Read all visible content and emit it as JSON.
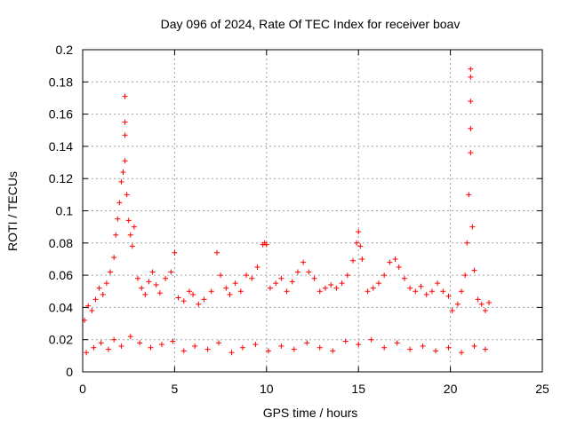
{
  "chart_data": {
    "type": "scatter",
    "title": "Day 096 of 2024, Rate Of TEC Index for receiver boav",
    "xlabel": "GPS time / hours",
    "ylabel": "ROTI / TECUs",
    "xlim": [
      0,
      25
    ],
    "ylim": [
      0,
      0.2
    ],
    "xticks": [
      0,
      5,
      10,
      15,
      20,
      25
    ],
    "xtick_labels": [
      "0",
      "5",
      "10",
      "15",
      "20",
      "25"
    ],
    "yticks": [
      0,
      0.02,
      0.04,
      0.06,
      0.08,
      0.1,
      0.12,
      0.14,
      0.16,
      0.18,
      0.2
    ],
    "ytick_labels": [
      "0",
      "0.02",
      "0.04",
      "0.06",
      "0.08",
      "0.1",
      "0.12",
      "0.14",
      "0.16",
      "0.18",
      "0.2"
    ],
    "grid": true,
    "marker": "plus",
    "color": "#ff0000",
    "series": [
      {
        "x": [
          0.1,
          0.3,
          0.5,
          0.7,
          0.9,
          1.1,
          1.3,
          1.5,
          1.7,
          1.8,
          1.9,
          2.0,
          2.1,
          2.2,
          2.3,
          2.3,
          2.3,
          2.3,
          2.4,
          2.5,
          2.6,
          2.7,
          2.8,
          3.0,
          3.2,
          3.4,
          3.6,
          3.8,
          4.0,
          4.2,
          4.5,
          4.8,
          5.0,
          5.2,
          5.5,
          5.8,
          6.0,
          6.3,
          6.6,
          7.0,
          7.3,
          7.5,
          7.8,
          8.0,
          8.3,
          8.6,
          8.9,
          9.2,
          9.5,
          9.8,
          9.9,
          10.0,
          10.2,
          10.5,
          10.8,
          11.1,
          11.4,
          11.7,
          12.0,
          12.3,
          12.6,
          12.9,
          13.2,
          13.5,
          13.8,
          14.1,
          14.4,
          14.7,
          14.9,
          15.0,
          15.1,
          15.2,
          15.5,
          15.8,
          16.1,
          16.4,
          16.7,
          17.0,
          17.2,
          17.5,
          17.8,
          18.1,
          18.4,
          18.7,
          19.0,
          19.3,
          19.6,
          19.9,
          20.1,
          20.4,
          20.6,
          20.8,
          20.9,
          21.0,
          21.1,
          21.1,
          21.1,
          21.1,
          21.1,
          21.2,
          21.3,
          21.5,
          21.7,
          21.9,
          22.1,
          0.2,
          0.6,
          1.0,
          1.4,
          1.7,
          2.1,
          2.6,
          3.1,
          3.7,
          4.3,
          4.9,
          5.5,
          6.1,
          6.8,
          7.4,
          8.1,
          8.7,
          9.4,
          10.1,
          10.8,
          11.5,
          12.2,
          12.9,
          13.6,
          14.3,
          15.0,
          15.7,
          16.4,
          17.1,
          17.8,
          18.5,
          19.2,
          19.9,
          20.6,
          21.3,
          21.9
        ],
        "y": [
          0.032,
          0.041,
          0.038,
          0.045,
          0.052,
          0.048,
          0.055,
          0.062,
          0.071,
          0.085,
          0.095,
          0.105,
          0.118,
          0.124,
          0.131,
          0.147,
          0.155,
          0.171,
          0.11,
          0.094,
          0.085,
          0.078,
          0.09,
          0.058,
          0.052,
          0.048,
          0.056,
          0.062,
          0.054,
          0.049,
          0.058,
          0.062,
          0.074,
          0.046,
          0.044,
          0.05,
          0.048,
          0.042,
          0.045,
          0.05,
          0.074,
          0.06,
          0.052,
          0.048,
          0.055,
          0.05,
          0.06,
          0.058,
          0.065,
          0.079,
          0.08,
          0.079,
          0.052,
          0.055,
          0.058,
          0.05,
          0.056,
          0.062,
          0.068,
          0.062,
          0.058,
          0.05,
          0.052,
          0.054,
          0.052,
          0.055,
          0.06,
          0.069,
          0.08,
          0.087,
          0.078,
          0.07,
          0.05,
          0.052,
          0.055,
          0.06,
          0.068,
          0.07,
          0.065,
          0.058,
          0.052,
          0.05,
          0.053,
          0.048,
          0.05,
          0.055,
          0.05,
          0.047,
          0.038,
          0.042,
          0.05,
          0.06,
          0.08,
          0.11,
          0.136,
          0.151,
          0.168,
          0.183,
          0.188,
          0.09,
          0.063,
          0.045,
          0.042,
          0.038,
          0.043,
          0.012,
          0.015,
          0.018,
          0.014,
          0.02,
          0.016,
          0.022,
          0.018,
          0.015,
          0.017,
          0.019,
          0.013,
          0.016,
          0.014,
          0.018,
          0.012,
          0.015,
          0.017,
          0.013,
          0.016,
          0.014,
          0.018,
          0.015,
          0.013,
          0.019,
          0.017,
          0.02,
          0.015,
          0.018,
          0.014,
          0.016,
          0.013,
          0.015,
          0.012,
          0.016,
          0.014
        ]
      }
    ]
  }
}
